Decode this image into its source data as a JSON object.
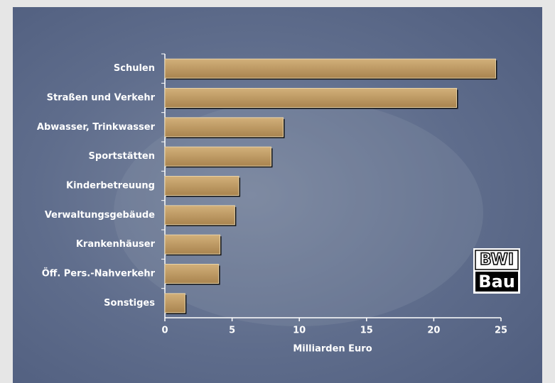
{
  "chart_data": {
    "type": "bar",
    "orientation": "horizontal",
    "categories": [
      "Schulen",
      "Straßen und Verkehr",
      "Abwasser, Trinkwasser",
      "Sportstätten",
      "Kinderbetreuung",
      "Verwaltungsgebäude",
      "Krankenhäuser",
      "Öff. Pers.-Nahverkehr",
      "Sonstiges"
    ],
    "values": [
      24.6,
      21.7,
      8.8,
      7.9,
      5.5,
      5.2,
      4.1,
      4.0,
      1.5
    ],
    "color": "#b8945e",
    "xlim": [
      0,
      25
    ],
    "xticks": [
      0,
      5,
      10,
      15,
      20,
      25
    ],
    "xlabel": "Milliarden Euro"
  },
  "logo": {
    "line1": "BWI",
    "line2": "Bau"
  }
}
